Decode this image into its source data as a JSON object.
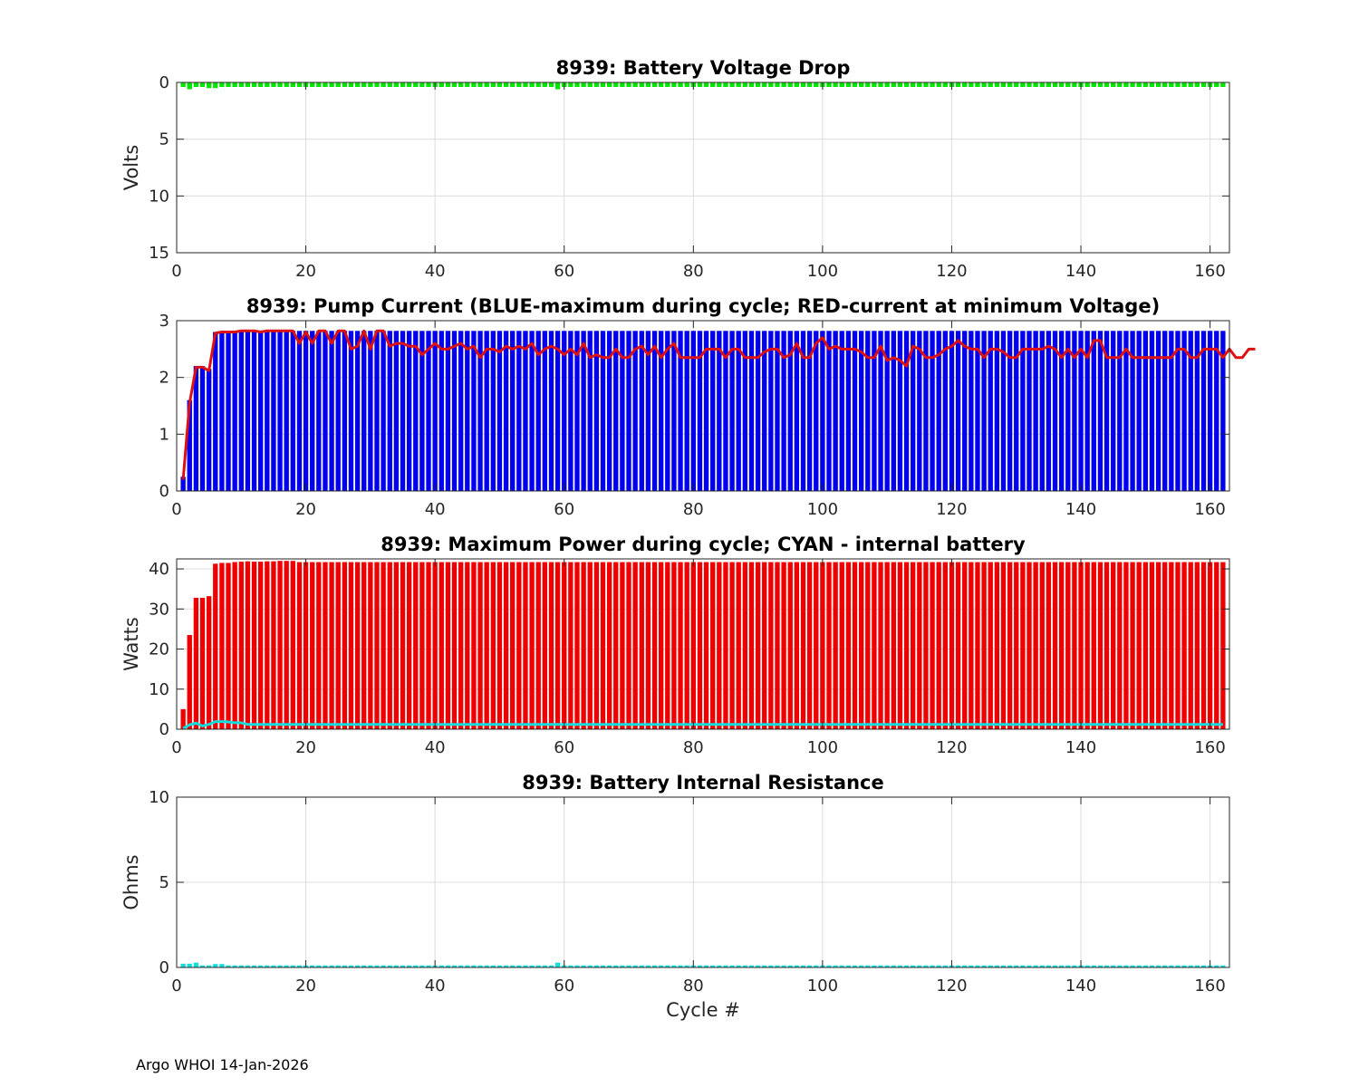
{
  "footer": "Argo WHOI 14-Jan-2026",
  "chart_data": [
    {
      "type": "bar",
      "title": "8939: Battery Voltage Drop",
      "ylabel": "Volts",
      "xlabel": "",
      "xlim": [
        0,
        163
      ],
      "ylim": [
        0,
        15
      ],
      "y_reversed": true,
      "xticks": [
        "0",
        "20",
        "40",
        "60",
        "80",
        "100",
        "120",
        "140",
        "160"
      ],
      "yticks": [
        "0",
        "5",
        "10",
        "15"
      ],
      "grid": true,
      "color": "#00e400",
      "series": [
        {
          "name": "voltage drop",
          "values": {
            "n": 162,
            "base": 0.4,
            "overrides": {
              "1": 0.6,
              "4": 0.5,
              "5": 0.5,
              "58": 0.6
            }
          }
        }
      ]
    },
    {
      "type": "bar+line",
      "title": "8939: Pump Current (BLUE-maximum during cycle; RED-current at minimum Voltage)",
      "ylabel": "",
      "xlabel": "",
      "xlim": [
        0,
        163
      ],
      "ylim": [
        0,
        3
      ],
      "xticks": [
        "0",
        "20",
        "40",
        "60",
        "80",
        "100",
        "120",
        "140",
        "160"
      ],
      "yticks": [
        "0",
        "1",
        "2",
        "3"
      ],
      "grid": true,
      "bar_color": "#0000ee",
      "line_color": "#dd1111",
      "series": [
        {
          "name": "maximum during cycle",
          "kind": "bar",
          "values_start": [
            0.25,
            1.6,
            2.2,
            2.2,
            2.15,
            2.8,
            2.8,
            2.8,
            2.8,
            2.82,
            2.82,
            2.82,
            2.82,
            2.82,
            2.82,
            2.82,
            2.82,
            2.82,
            2.82,
            2.82
          ],
          "fill": 2.82
        },
        {
          "name": "current at minimum voltage",
          "kind": "line",
          "values": [
            0.2,
            1.55,
            2.18,
            2.18,
            2.12,
            2.78,
            2.8,
            2.8,
            2.8,
            2.82,
            2.82,
            2.82,
            2.8,
            2.82,
            2.82,
            2.82,
            2.82,
            2.82,
            2.6,
            2.8,
            2.6,
            2.82,
            2.82,
            2.6,
            2.82,
            2.82,
            2.5,
            2.55,
            2.82,
            2.5,
            2.82,
            2.82,
            2.55,
            2.6,
            2.6,
            2.55,
            2.55,
            2.4,
            2.5,
            2.6,
            2.5,
            2.5,
            2.55,
            2.6,
            2.5,
            2.55,
            2.35,
            2.5,
            2.5,
            2.45,
            2.55,
            2.5,
            2.55,
            2.5,
            2.6,
            2.4,
            2.5,
            2.55,
            2.5,
            2.4,
            2.5,
            2.4,
            2.6,
            2.35,
            2.4,
            2.35,
            2.35,
            2.5,
            2.35,
            2.35,
            2.5,
            2.55,
            2.4,
            2.55,
            2.35,
            2.5,
            2.6,
            2.35,
            2.35,
            2.35,
            2.35,
            2.5,
            2.5,
            2.5,
            2.35,
            2.5,
            2.5,
            2.35,
            2.35,
            2.35,
            2.45,
            2.5,
            2.5,
            2.35,
            2.4,
            2.6,
            2.35,
            2.35,
            2.6,
            2.7,
            2.5,
            2.55,
            2.5,
            2.5,
            2.5,
            2.45,
            2.35,
            2.35,
            2.55,
            2.3,
            2.35,
            2.3,
            2.2,
            2.55,
            2.5,
            2.35,
            2.35,
            2.4,
            2.5,
            2.55,
            2.65,
            2.55,
            2.5,
            2.5,
            2.35,
            2.5,
            2.5,
            2.45,
            2.35,
            2.35,
            2.5,
            2.5,
            2.5,
            2.5,
            2.55,
            2.5,
            2.35,
            2.5,
            2.35,
            2.5,
            2.35,
            2.65,
            2.65,
            2.35,
            2.35,
            2.35,
            2.5,
            2.35,
            2.35,
            2.35,
            2.35,
            2.35,
            2.35,
            2.35,
            2.5,
            2.5,
            2.35,
            2.35,
            2.5,
            2.5,
            2.5,
            2.35,
            2.5,
            2.35,
            2.35,
            2.5,
            2.5
          ]
        }
      ]
    },
    {
      "type": "bar+line",
      "title": "8939: Maximum Power during cycle; CYAN - internal battery",
      "ylabel": "Watts",
      "xlabel": "",
      "xlim": [
        0,
        163
      ],
      "ylim": [
        0,
        42.5
      ],
      "xticks": [
        "0",
        "20",
        "40",
        "60",
        "80",
        "100",
        "120",
        "140",
        "160"
      ],
      "yticks": [
        "0",
        "10",
        "20",
        "30",
        "40"
      ],
      "grid": true,
      "bar_color": "#ee0000",
      "line_color": "#11dddd",
      "series": [
        {
          "name": "maximum power",
          "kind": "bar",
          "values_start": [
            5,
            23.5,
            32.8,
            32.8,
            33.2,
            41.3,
            41.5,
            41.5,
            41.7,
            41.8,
            41.9,
            41.8,
            41.8,
            41.9,
            41.9,
            42,
            42,
            42
          ],
          "fill": 41.7
        },
        {
          "name": "internal battery",
          "kind": "line",
          "values_start": [
            0.2,
            1.1,
            1.5,
            0.8,
            1.2,
            1.9,
            1.9,
            1.8,
            1.6,
            1.6
          ],
          "fill": 1.2
        }
      ]
    },
    {
      "type": "bar",
      "title": "8939: Battery Internal Resistance",
      "ylabel": "Ohms",
      "xlabel": "Cycle #",
      "xlim": [
        0,
        163
      ],
      "ylim": [
        0,
        10
      ],
      "xticks": [
        "0",
        "20",
        "40",
        "60",
        "80",
        "100",
        "120",
        "140",
        "160"
      ],
      "yticks": [
        "0",
        "5",
        "10"
      ],
      "grid": true,
      "color": "#11dddd",
      "series": [
        {
          "name": "internal resistance",
          "values": {
            "n": 162,
            "base": 0.12,
            "overrides": {
              "0": 0.22,
              "1": 0.22,
              "2": 0.28,
              "5": 0.2,
              "6": 0.2,
              "58": 0.28
            }
          }
        }
      ]
    }
  ]
}
